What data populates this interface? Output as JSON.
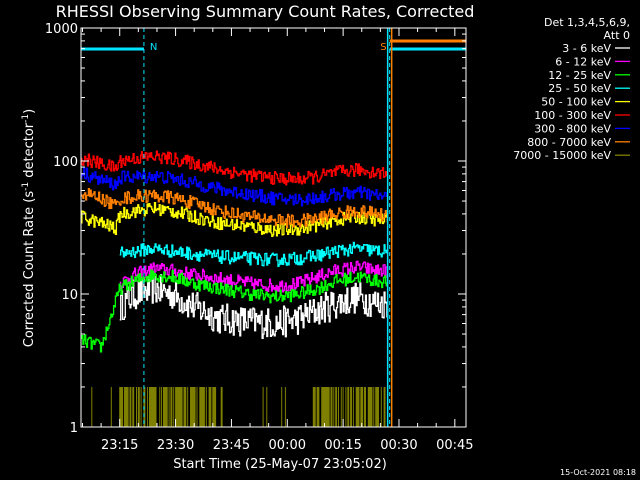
{
  "chart_data": {
    "type": "line",
    "title": "RHESSI Observing Summary Count Rates, Corrected",
    "xlabel": "Start Time (25-May-07 23:05:02)",
    "ylabel": "Corrected Count Rate (s-1 detector-1)",
    "ylabel_base": "Corrected Count Rate (s",
    "ylabel_sup1": "-1",
    "ylabel_mid": " detector",
    "ylabel_sup2": "-1",
    "ylabel_end": ")",
    "yscale": "log",
    "ylim": [
      1,
      1000
    ],
    "y_ticks": [
      {
        "value": 1,
        "label": "1"
      },
      {
        "value": 10,
        "label": "10"
      },
      {
        "value": 100,
        "label": "100"
      },
      {
        "value": 1000,
        "label": "1000"
      }
    ],
    "xlim_minutes": [
      -0.4,
      103
    ],
    "x_ticks": [
      {
        "minutes": 10,
        "label": "23:15"
      },
      {
        "minutes": 25,
        "label": "23:30"
      },
      {
        "minutes": 40,
        "label": "23:45"
      },
      {
        "minutes": 55,
        "label": "00:00"
      },
      {
        "minutes": 70,
        "label": "00:15"
      },
      {
        "minutes": 85,
        "label": "00:30"
      },
      {
        "minutes": 100,
        "label": "00:45"
      }
    ],
    "legend": {
      "header_line1": "Det 1,3,4,5,6,9,",
      "header_line2": "Att 0",
      "placement": "right"
    },
    "series": [
      {
        "name": "3 - 6 keV",
        "color": "#ffffff",
        "points": [
          [
            10,
            8
          ],
          [
            14,
            10
          ],
          [
            19,
            11
          ],
          [
            24,
            10
          ],
          [
            30,
            8
          ],
          [
            37,
            6.5
          ],
          [
            45,
            6.2
          ],
          [
            52,
            6
          ],
          [
            58,
            6.5
          ],
          [
            63,
            7.5
          ],
          [
            68,
            8.5
          ],
          [
            74,
            9.5
          ],
          [
            79,
            8.5
          ],
          [
            82,
            8.5
          ]
        ]
      },
      {
        "name": "6 - 12 keV",
        "color": "#ff00ff",
        "points": [
          [
            10,
            12
          ],
          [
            14,
            14
          ],
          [
            19,
            15.5
          ],
          [
            24,
            15
          ],
          [
            30,
            14
          ],
          [
            37,
            13
          ],
          [
            45,
            12
          ],
          [
            52,
            11.5
          ],
          [
            58,
            12
          ],
          [
            63,
            13.5
          ],
          [
            68,
            15
          ],
          [
            74,
            16
          ],
          [
            79,
            15
          ],
          [
            82,
            15
          ]
        ]
      },
      {
        "name": "12 - 25 keV",
        "color": "#00ff00",
        "points": [
          [
            -0.4,
            4.5
          ],
          [
            5,
            4
          ],
          [
            10,
            11
          ],
          [
            14,
            12.5
          ],
          [
            19,
            14
          ],
          [
            24,
            13.5
          ],
          [
            30,
            12
          ],
          [
            37,
            11
          ],
          [
            45,
            10
          ],
          [
            52,
            9.5
          ],
          [
            58,
            10
          ],
          [
            63,
            11
          ],
          [
            68,
            12.5
          ],
          [
            74,
            13.5
          ],
          [
            79,
            12.5
          ],
          [
            82,
            12.5
          ]
        ]
      },
      {
        "name": "25 - 50 keV",
        "color": "#00ffff",
        "points": [
          [
            10,
            20
          ],
          [
            14,
            21
          ],
          [
            19,
            22
          ],
          [
            24,
            21
          ],
          [
            30,
            20
          ],
          [
            37,
            19
          ],
          [
            45,
            18.5
          ],
          [
            52,
            18
          ],
          [
            58,
            18.5
          ],
          [
            63,
            19.5
          ],
          [
            68,
            21
          ],
          [
            74,
            22
          ],
          [
            79,
            21
          ],
          [
            82,
            21
          ]
        ]
      },
      {
        "name": "50 - 100 keV",
        "color": "#ffff00",
        "points": [
          [
            -0.4,
            38
          ],
          [
            5,
            34
          ],
          [
            9,
            31
          ],
          [
            10,
            40
          ],
          [
            14,
            42
          ],
          [
            19,
            44
          ],
          [
            24,
            42
          ],
          [
            30,
            38
          ],
          [
            37,
            34
          ],
          [
            45,
            32
          ],
          [
            52,
            30
          ],
          [
            58,
            31
          ],
          [
            63,
            33
          ],
          [
            68,
            36
          ],
          [
            74,
            38
          ],
          [
            79,
            36
          ],
          [
            82,
            36
          ]
        ]
      },
      {
        "name": "100 - 300 keV",
        "color": "#ff0000",
        "points": [
          [
            -0.4,
            105
          ],
          [
            5,
            95
          ],
          [
            9,
            88
          ],
          [
            10,
            100
          ],
          [
            14,
            105
          ],
          [
            19,
            108
          ],
          [
            24,
            104
          ],
          [
            30,
            96
          ],
          [
            37,
            86
          ],
          [
            45,
            78
          ],
          [
            52,
            74
          ],
          [
            58,
            73
          ],
          [
            63,
            76
          ],
          [
            68,
            82
          ],
          [
            74,
            86
          ],
          [
            79,
            82
          ],
          [
            82,
            80
          ]
        ]
      },
      {
        "name": "300 - 800 keV",
        "color": "#0000ff",
        "points": [
          [
            -0.4,
            82
          ],
          [
            5,
            72
          ],
          [
            9,
            66
          ],
          [
            10,
            75
          ],
          [
            14,
            76
          ],
          [
            19,
            77
          ],
          [
            24,
            74
          ],
          [
            30,
            68
          ],
          [
            37,
            61
          ],
          [
            45,
            56
          ],
          [
            52,
            52
          ],
          [
            58,
            51
          ],
          [
            63,
            53
          ],
          [
            68,
            56
          ],
          [
            74,
            58
          ],
          [
            79,
            55
          ],
          [
            82,
            53
          ]
        ]
      },
      {
        "name": "800 - 7000 keV",
        "color": "#ff8000",
        "points": [
          [
            -0.4,
            58
          ],
          [
            5,
            52
          ],
          [
            9,
            46
          ],
          [
            10,
            52
          ],
          [
            14,
            54
          ],
          [
            19,
            55
          ],
          [
            24,
            53
          ],
          [
            30,
            48
          ],
          [
            37,
            42
          ],
          [
            45,
            38
          ],
          [
            52,
            36
          ],
          [
            58,
            35
          ],
          [
            63,
            37
          ],
          [
            68,
            40
          ],
          [
            74,
            42
          ],
          [
            79,
            40
          ],
          [
            82,
            38
          ]
        ]
      },
      {
        "name": "7000 - 15000 keV",
        "color": "#808000",
        "points": []
      }
    ],
    "markers": [
      {
        "label": "N",
        "minutes": 16.5
      },
      {
        "label": "S",
        "minutes": 82.5
      }
    ],
    "timestamp": "15-Oct-2021 08:18"
  }
}
